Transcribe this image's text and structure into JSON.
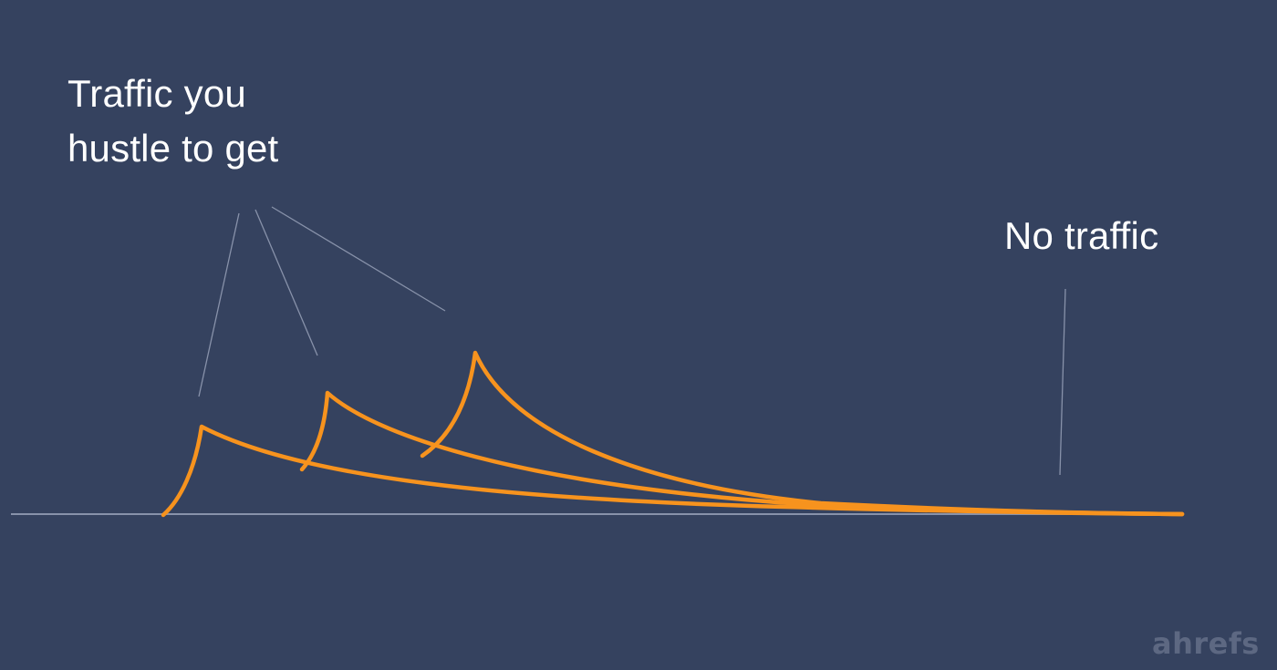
{
  "annotations": {
    "hustle_line1": "Traffic you",
    "hustle_line2": "hustle to get",
    "no_traffic": "No traffic"
  },
  "watermark": "ahrefs",
  "colors": {
    "background": "#35425f",
    "curve": "#f7931e",
    "baseline": "#8892aa",
    "pointer": "#8892aa",
    "label_text": "#ffffff",
    "watermark": "#5d6882"
  },
  "peaks": [
    {
      "name": "peak-1"
    },
    {
      "name": "peak-2"
    },
    {
      "name": "peak-3"
    }
  ]
}
